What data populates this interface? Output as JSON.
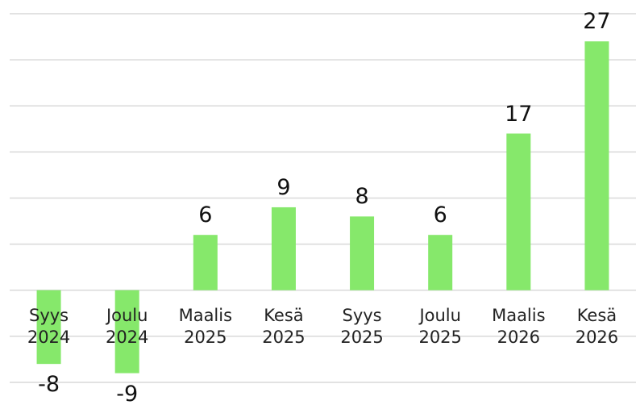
{
  "chart_data": {
    "type": "bar",
    "categories": [
      "Syys\n2024",
      "Joulu\n2024",
      "Maalis\n2025",
      "Kesä\n2025",
      "Syys\n2025",
      "Joulu\n2025",
      "Maalis\n2026",
      "Kesä\n2026"
    ],
    "values": [
      -8,
      -9,
      6,
      9,
      8,
      6,
      17,
      27
    ],
    "color": "#86e86b",
    "ylim": [
      -10,
      30
    ],
    "yticks": [
      -10,
      -5,
      0,
      5,
      10,
      15,
      20,
      25,
      30
    ],
    "grid": true
  }
}
